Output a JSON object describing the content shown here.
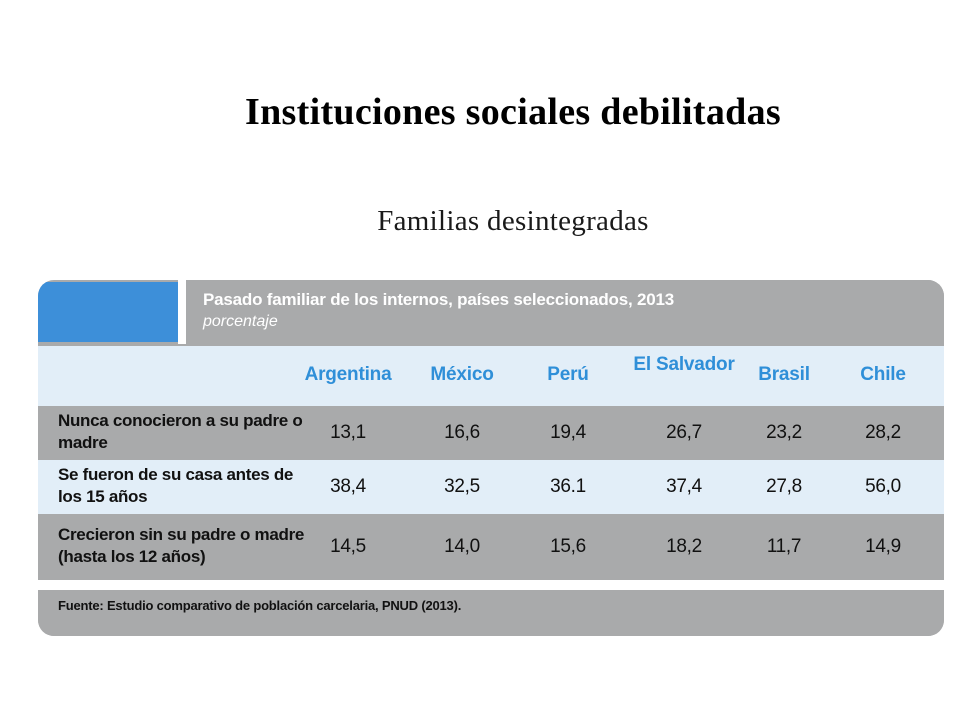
{
  "slide": {
    "title": "Instituciones sociales debilitadas",
    "subtitle": "Familias desintegradas"
  },
  "table": {
    "header_title": "Pasado familiar de los internos, países seleccionados, 2013",
    "header_sub": "porcentaje",
    "columns": [
      "Argentina",
      "México",
      "Perú",
      "El Salvador",
      "Brasil",
      "Chile"
    ],
    "rows": [
      {
        "label": "Nunca conocieron a su padre o madre",
        "values": [
          "13,1",
          "16,6",
          "19,4",
          "26,7",
          "23,2",
          "28,2"
        ]
      },
      {
        "label": "Se fueron de su casa antes de los 15 años",
        "values": [
          "38,4",
          "32,5",
          "36.1",
          "37,4",
          "27,8",
          "56,0"
        ]
      },
      {
        "label": "Crecieron sin su padre o madre (hasta los 12 años)",
        "values": [
          "14,5",
          "14,0",
          "15,6",
          "18,2",
          "11,7",
          "14,9"
        ]
      }
    ],
    "source": "Fuente: Estudio comparativo de población carcelaria, PNUD (2013).",
    "colors": {
      "accent_blue": "#3d8fd9",
      "header_gray": "#a9aaab",
      "light_blue": "#e2eef8",
      "column_text": "#2f8fd8"
    }
  }
}
